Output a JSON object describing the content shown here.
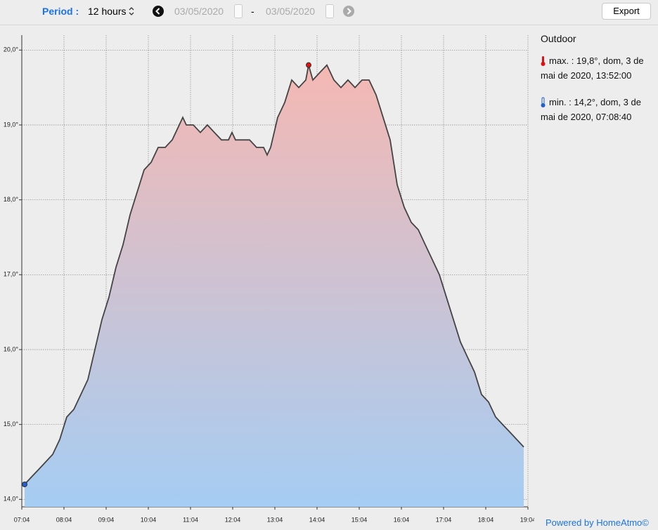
{
  "toolbar": {
    "period_label": "Period :",
    "period_value": "12 hours",
    "date_from": "03/05/2020",
    "separator": "-",
    "date_to": "03/05/2020",
    "export": "Export"
  },
  "chart_data": {
    "type": "area",
    "x": [
      "07:08",
      "07:18",
      "07:28",
      "07:38",
      "07:48",
      "07:58",
      "08:08",
      "08:18",
      "08:28",
      "08:38",
      "08:48",
      "08:58",
      "09:08",
      "09:18",
      "09:28",
      "09:38",
      "09:48",
      "09:58",
      "10:08",
      "10:18",
      "10:28",
      "10:38",
      "10:48",
      "10:53",
      "10:58",
      "11:08",
      "11:18",
      "11:28",
      "11:38",
      "11:48",
      "11:58",
      "12:03",
      "12:08",
      "12:18",
      "12:28",
      "12:38",
      "12:48",
      "12:53",
      "12:58",
      "13:08",
      "13:18",
      "13:28",
      "13:38",
      "13:48",
      "13:52",
      "13:58",
      "14:08",
      "14:18",
      "14:28",
      "14:38",
      "14:48",
      "14:58",
      "15:08",
      "15:18",
      "15:28",
      "15:38",
      "15:48",
      "15:58",
      "16:08",
      "16:18",
      "16:28",
      "16:38",
      "16:48",
      "16:58",
      "17:08",
      "17:18",
      "17:28",
      "17:38",
      "17:48",
      "17:58",
      "18:08",
      "18:18",
      "18:28",
      "18:38",
      "18:48",
      "18:58"
    ],
    "values": [
      14.2,
      14.3,
      14.4,
      14.5,
      14.6,
      14.8,
      15.1,
      15.2,
      15.4,
      15.6,
      16.0,
      16.4,
      16.7,
      17.1,
      17.4,
      17.8,
      18.1,
      18.4,
      18.5,
      18.7,
      18.7,
      18.8,
      19.0,
      19.1,
      19.0,
      19.0,
      18.9,
      19.0,
      18.9,
      18.8,
      18.8,
      18.9,
      18.8,
      18.8,
      18.8,
      18.7,
      18.7,
      18.6,
      18.7,
      19.1,
      19.3,
      19.6,
      19.5,
      19.6,
      19.8,
      19.6,
      19.7,
      19.8,
      19.6,
      19.5,
      19.6,
      19.5,
      19.6,
      19.6,
      19.4,
      19.1,
      18.8,
      18.2,
      17.9,
      17.7,
      17.6,
      17.4,
      17.2,
      17.0,
      16.7,
      16.4,
      16.1,
      15.9,
      15.7,
      15.4,
      15.3,
      15.1,
      15.0,
      14.9,
      14.8,
      14.7
    ],
    "xlim": [
      "07:04",
      "19:04"
    ],
    "xticks": [
      "07:04",
      "08:04",
      "09:04",
      "10:04",
      "11:04",
      "12:04",
      "13:04",
      "14:04",
      "15:04",
      "16:04",
      "17:04",
      "18:04",
      "19:04"
    ],
    "ylim": [
      13.9,
      20.2
    ],
    "yticks": [
      {
        "value": 14,
        "label": "14,0°"
      },
      {
        "value": 15,
        "label": "15,0°"
      },
      {
        "value": 16,
        "label": "16,0°"
      },
      {
        "value": 17,
        "label": "17,0°"
      },
      {
        "value": 18,
        "label": "18,0°"
      },
      {
        "value": 19,
        "label": "19,0°"
      },
      {
        "value": 20,
        "label": "20,0°"
      }
    ],
    "grid": true,
    "color": "#444444",
    "fill_top": "#f5b8b3",
    "fill_bottom": "#a5cdf3",
    "max_color": "#e01010",
    "min_color": "#1f5fd0"
  },
  "panel": {
    "title": "Outdoor",
    "max": "max. : 19,8°, dom, 3 de mai de 2020, 13:52:00",
    "min": "min. : 14,2°, dom, 3 de mai de 2020, 07:08:40"
  },
  "footer": "Powered by HomeAtmo©"
}
